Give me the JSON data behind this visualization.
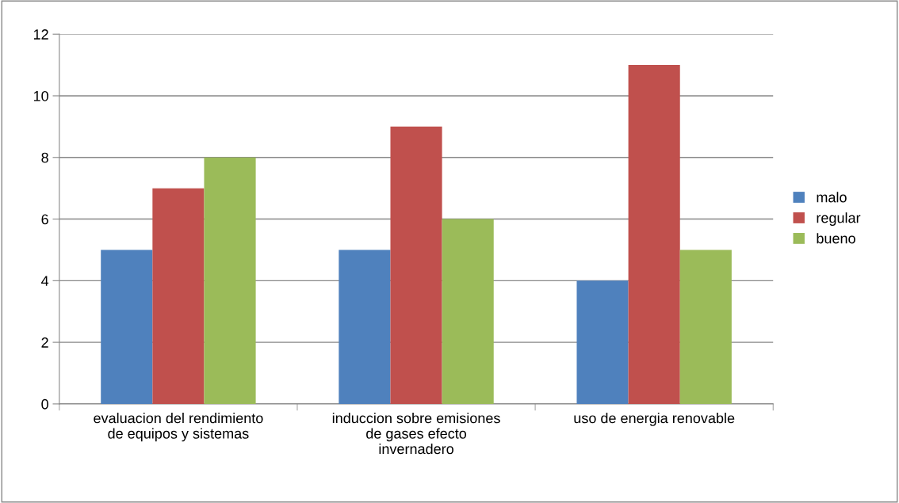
{
  "chart_data": {
    "type": "bar",
    "categories": [
      "evaluacion del rendimiento\nde equipos y sistemas",
      "induccion sobre emisiones\nde gases efecto\ninvernadero",
      "uso de energia renovable"
    ],
    "series": [
      {
        "name": "malo",
        "color": "#4f81bd",
        "values": [
          5,
          5,
          4
        ]
      },
      {
        "name": "regular",
        "color": "#c0504d",
        "values": [
          7,
          9,
          11
        ]
      },
      {
        "name": "bueno",
        "color": "#9bbb59",
        "values": [
          8,
          6,
          5
        ]
      }
    ],
    "ylim": [
      0,
      12
    ],
    "yticks": [
      0,
      2,
      4,
      6,
      8,
      10,
      12
    ],
    "grid": "y",
    "legend": "right"
  }
}
